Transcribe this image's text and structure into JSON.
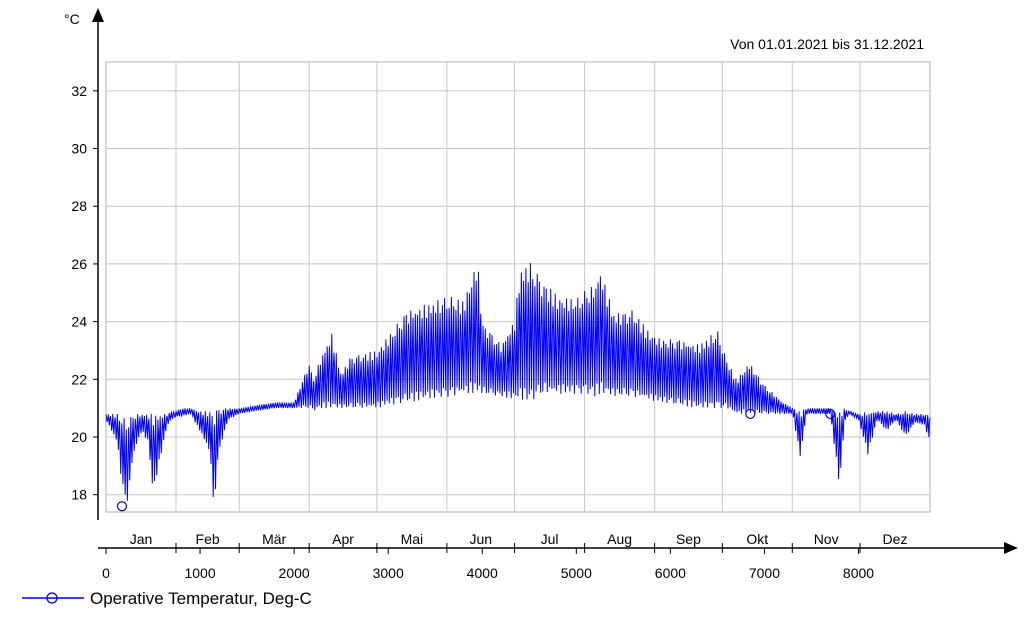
{
  "chart_data": {
    "type": "line",
    "date_range_label": "Von 01.01.2021 bis 31.12.2021",
    "y_unit": "°C",
    "ylim": [
      17.4,
      33.0
    ],
    "xlim": [
      0,
      8760
    ],
    "y_ticks": [
      "18",
      "20",
      "22",
      "24",
      "26",
      "28",
      "30",
      "32"
    ],
    "x_ticks": [
      "0",
      "1000",
      "2000",
      "3000",
      "4000",
      "5000",
      "6000",
      "7000",
      "8000"
    ],
    "months": [
      "Jan",
      "Feb",
      "Mär",
      "Apr",
      "Mai",
      "Jun",
      "Jul",
      "Aug",
      "Sep",
      "Okt",
      "Nov",
      "Dez"
    ],
    "grid": true,
    "legend_position": "bottom-left",
    "series": [
      {
        "name": "Operative Temperatur, Deg-C",
        "color": "#0000ff",
        "marker": "circle",
        "x": [
          0,
          120,
          170,
          220,
          300,
          380,
          450,
          500,
          560,
          650,
          700,
          744,
          800,
          900,
          1000,
          1100,
          1150,
          1200,
          1300,
          1416,
          1600,
          1800,
          2000,
          2160,
          2200,
          2300,
          2400,
          2500,
          2600,
          2880,
          3000,
          3200,
          3400,
          3650,
          3800,
          3950,
          4000,
          4200,
          4344,
          4400,
          4500,
          4650,
          4800,
          5000,
          5100,
          5200,
          5250,
          5400,
          5600,
          5760,
          5900,
          6100,
          6300,
          6500,
          6600,
          6700,
          6840,
          7000,
          7200,
          7300,
          7380,
          7450,
          7600,
          7700,
          7800,
          7850,
          7900,
          8000,
          8100,
          8200,
          8300,
          8400,
          8500,
          8600,
          8700,
          8760
        ],
        "low": [
          20.6,
          19.8,
          18.3,
          17.6,
          19.5,
          20.2,
          19.8,
          18.0,
          19.0,
          20.4,
          20.6,
          20.7,
          20.7,
          20.8,
          20.2,
          19.5,
          17.5,
          19.5,
          20.6,
          20.8,
          20.9,
          21.0,
          21.0,
          21.0,
          20.9,
          21.0,
          21.0,
          21.0,
          21.0,
          21.0,
          21.1,
          21.2,
          21.3,
          21.4,
          21.5,
          21.5,
          21.5,
          21.4,
          21.3,
          21.3,
          21.2,
          21.5,
          21.5,
          21.5,
          21.5,
          21.4,
          21.5,
          21.4,
          21.4,
          21.3,
          21.2,
          21.1,
          21.0,
          21.0,
          21.0,
          20.8,
          20.8,
          20.8,
          20.8,
          20.8,
          19.3,
          20.8,
          20.8,
          20.8,
          18.2,
          20.5,
          20.8,
          20.6,
          19.4,
          20.6,
          20.2,
          20.6,
          20.0,
          20.5,
          20.4,
          19.8
        ],
        "high": [
          20.8,
          20.8,
          20.7,
          20.6,
          20.8,
          20.8,
          20.8,
          20.8,
          20.8,
          20.8,
          20.9,
          20.9,
          21.0,
          21.0,
          20.9,
          20.9,
          20.9,
          21.0,
          21.0,
          21.0,
          21.1,
          21.2,
          21.2,
          22.6,
          22.0,
          22.9,
          23.6,
          22.2,
          22.8,
          23.0,
          23.5,
          24.4,
          24.6,
          24.9,
          24.7,
          26.2,
          24.0,
          23.2,
          24.1,
          25.8,
          26.1,
          25.4,
          24.9,
          24.8,
          25.1,
          25.3,
          25.9,
          24.3,
          24.4,
          23.7,
          23.4,
          23.4,
          23.2,
          23.7,
          22.7,
          22.0,
          22.6,
          21.8,
          21.2,
          21.0,
          20.9,
          21.0,
          21.0,
          21.0,
          20.9,
          21.0,
          20.9,
          20.8,
          20.9,
          20.9,
          20.9,
          20.8,
          20.9,
          20.8,
          20.8,
          20.8
        ]
      }
    ]
  }
}
